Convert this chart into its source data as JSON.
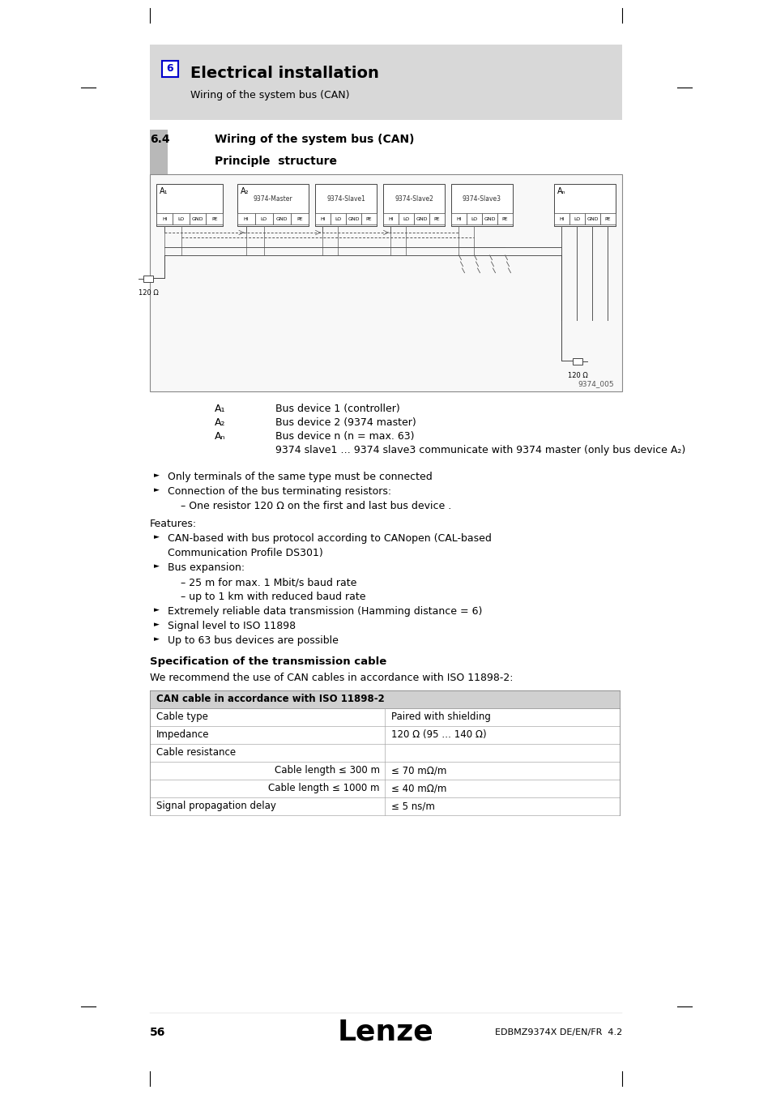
{
  "page_bg": "#ffffff",
  "header_bg": "#d8d8d8",
  "header_number_box_color": "#0000cc",
  "header_number": "6",
  "header_title": "Electrical installation",
  "header_subtitle": "Wiring of the system bus (CAN)",
  "section_number": "6.4",
  "section_title": "Wiring of the system bus (CAN)",
  "subsection_title": "Principle  structure",
  "diagram_note": "9374_005",
  "legend_lines": [
    [
      "A₁",
      "Bus device 1 (controller)"
    ],
    [
      "A₂",
      "Bus device 2 (9374 master)"
    ],
    [
      "Aₙ",
      "Bus device n (n = max. 63)"
    ],
    [
      "",
      "9374 slave1 … 9374 slave3 communicate with 9374 master (only bus device A₂)"
    ]
  ],
  "bullet_items_pre": [
    {
      "type": "bullet",
      "text": "Only terminals of the same type must be connected"
    },
    {
      "type": "bullet",
      "text": "Connection of the bus terminating resistors:"
    },
    {
      "type": "sub",
      "text": "– One resistor 120 Ω on the first and last bus device ."
    }
  ],
  "features_label": "Features:",
  "feature_items": [
    {
      "type": "bullet",
      "text": "CAN-based with bus protocol according to CANopen (CAL-based"
    },
    {
      "type": "cont",
      "text": "Communication Profile DS301)"
    },
    {
      "type": "bullet",
      "text": "Bus expansion:"
    },
    {
      "type": "sub",
      "text": "– 25 m for max. 1 Mbit/s baud rate"
    },
    {
      "type": "sub",
      "text": "– up to 1 km with reduced baud rate"
    },
    {
      "type": "bullet",
      "text": "Extremely reliable data transmission (Hamming distance = 6)"
    },
    {
      "type": "bullet",
      "text": "Signal level to ISO 11898"
    },
    {
      "type": "bullet",
      "text": "Up to 63 bus devices are possible"
    }
  ],
  "spec_heading": "Specification of the transmission cable",
  "spec_intro": "We recommend the use of CAN cables in accordance with ISO 11898-2:",
  "table_header": "CAN cable in accordance with ISO 11898-2",
  "table_header_bg": "#d0d0d0",
  "table_rows": [
    {
      "left": "Cable type",
      "right": "Paired with shielding",
      "indent": false
    },
    {
      "left": "Impedance",
      "right": "120 Ω (95 … 140 Ω)",
      "indent": false
    },
    {
      "left": "Cable resistance",
      "right": "",
      "indent": false
    },
    {
      "left": "Cable length ≤ 300 m",
      "right": "≤ 70 mΩ/m",
      "indent": true
    },
    {
      "left": "Cable length ≤ 1000 m",
      "right": "≤ 40 mΩ/m",
      "indent": true
    },
    {
      "left": "Signal propagation delay",
      "right": "≤ 5 ns/m",
      "indent": false
    }
  ],
  "footer_page": "56",
  "footer_logo": "Lenze",
  "footer_right": "EDBMZ9374X DE/EN/FR  4.2"
}
